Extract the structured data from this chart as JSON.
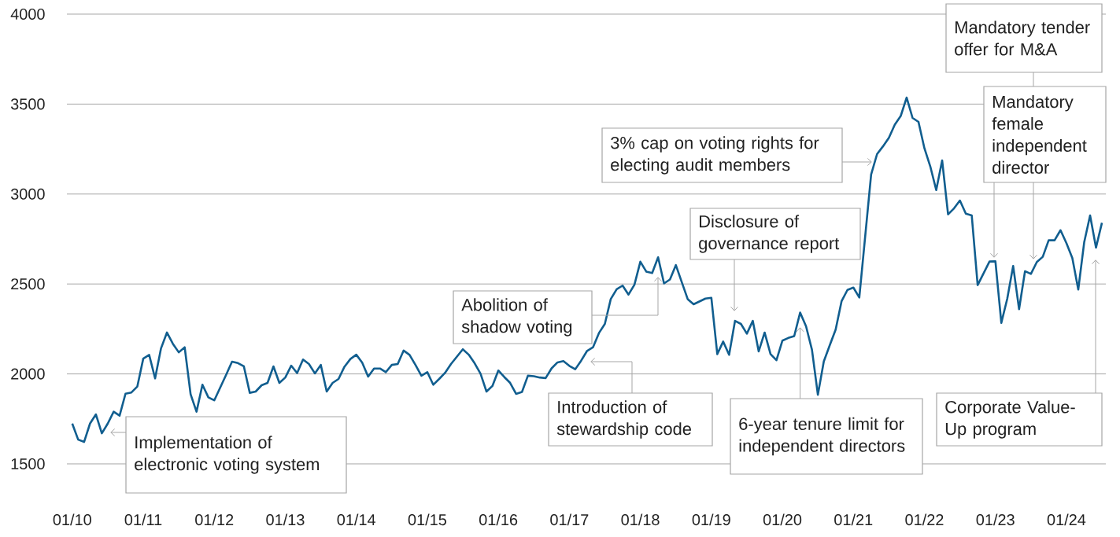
{
  "chart_data": {
    "type": "line",
    "x": [
      "2010-01",
      "2010-02",
      "2010-03",
      "2010-04",
      "2010-05",
      "2010-06",
      "2010-07",
      "2010-08",
      "2010-09",
      "2010-10",
      "2010-11",
      "2010-12",
      "2011-01",
      "2011-02",
      "2011-03",
      "2011-04",
      "2011-05",
      "2011-06",
      "2011-07",
      "2011-08",
      "2011-09",
      "2011-10",
      "2011-11",
      "2011-12",
      "2012-01",
      "2012-03",
      "2012-04",
      "2012-05",
      "2012-06",
      "2012-07",
      "2012-08",
      "2012-09",
      "2012-10",
      "2012-11",
      "2012-12",
      "2013-01",
      "2013-02",
      "2013-03",
      "2013-04",
      "2013-05",
      "2013-06",
      "2013-07",
      "2013-08",
      "2013-09",
      "2013-10",
      "2013-11",
      "2013-12",
      "2014-01",
      "2014-02",
      "2014-03",
      "2014-04",
      "2014-05",
      "2014-06",
      "2014-07",
      "2014-08",
      "2014-09",
      "2014-10",
      "2014-11",
      "2014-12",
      "2015-01",
      "2015-02",
      "2015-03",
      "2015-04",
      "2015-05",
      "2015-07",
      "2015-08",
      "2015-09",
      "2015-10",
      "2015-11",
      "2015-12",
      "2016-01",
      "2016-02",
      "2016-03",
      "2016-04",
      "2016-05",
      "2016-06",
      "2016-07",
      "2016-08",
      "2016-09",
      "2016-10",
      "2016-11",
      "2016-12",
      "2017-01",
      "2017-02",
      "2017-03",
      "2017-04",
      "2017-05",
      "2017-06",
      "2017-07",
      "2017-08",
      "2017-09",
      "2017-10",
      "2017-11",
      "2017-12",
      "2018-01",
      "2018-02",
      "2018-03",
      "2018-04",
      "2018-05",
      "2018-06",
      "2018-07",
      "2018-08",
      "2018-09",
      "2018-10",
      "2018-12",
      "2019-01",
      "2019-02",
      "2019-03",
      "2019-04",
      "2019-05",
      "2019-06",
      "2019-07",
      "2019-08",
      "2019-09",
      "2019-10",
      "2019-11",
      "2019-12",
      "2020-01",
      "2020-02",
      "2020-03",
      "2020-04",
      "2020-05",
      "2020-06",
      "2020-07",
      "2020-08",
      "2020-09",
      "2020-10",
      "2020-11",
      "2020-12",
      "2021-01",
      "2021-02",
      "2021-03",
      "2021-04",
      "2021-05",
      "2021-06",
      "2021-07",
      "2021-08",
      "2021-09",
      "2021-10",
      "2021-11",
      "2021-12",
      "2022-01",
      "2022-02",
      "2022-03",
      "2022-04",
      "2022-05",
      "2022-06",
      "2022-07",
      "2022-08",
      "2022-09",
      "2022-10",
      "2022-12",
      "2023-01",
      "2023-02",
      "2023-03",
      "2023-04",
      "2023-05",
      "2023-06",
      "2023-07",
      "2023-08",
      "2023-09",
      "2023-10",
      "2023-11",
      "2023-12",
      "2024-01",
      "2024-02",
      "2024-03",
      "2024-04",
      "2024-05",
      "2024-06",
      "2024-07"
    ],
    "series": [
      {
        "color": "#115e8f",
        "values": [
          1724,
          1635,
          1622,
          1724,
          1775,
          1670,
          1724,
          1790,
          1768,
          1890,
          1897,
          1930,
          2085,
          2106,
          1975,
          2142,
          2230,
          2168,
          2120,
          2148,
          1887,
          1790,
          1940,
          1870,
          1853,
          1995,
          2068,
          2060,
          2042,
          1895,
          1902,
          1937,
          1950,
          2042,
          1950,
          1980,
          2046,
          2005,
          2080,
          2055,
          2003,
          2050,
          1902,
          1950,
          1972,
          2040,
          2083,
          2107,
          2063,
          1985,
          2030,
          2030,
          2010,
          2050,
          2055,
          2130,
          2106,
          2050,
          1990,
          2010,
          1940,
          1972,
          2006,
          2055,
          2137,
          2107,
          2059,
          2001,
          1902,
          1933,
          2019,
          1983,
          1950,
          1889,
          1900,
          1990,
          1987,
          1980,
          1977,
          2031,
          2064,
          2071,
          2045,
          2026,
          2074,
          2128,
          2148,
          2227,
          2278,
          2416,
          2471,
          2491,
          2441,
          2496,
          2624,
          2569,
          2561,
          2648,
          2503,
          2525,
          2605,
          2510,
          2416,
          2387,
          2419,
          2423,
          2110,
          2180,
          2106,
          2295,
          2278,
          2224,
          2295,
          2125,
          2230,
          2110,
          2076,
          2185,
          2200,
          2210,
          2341,
          2265,
          2134,
          1884,
          2069,
          2159,
          2246,
          2404,
          2467,
          2480,
          2425,
          2767,
          3109,
          3222,
          3265,
          3313,
          3386,
          3434,
          3536,
          3423,
          3401,
          3255,
          3153,
          3022,
          3187,
          2887,
          2920,
          2964,
          2891,
          2881,
          2494,
          2625,
          2626,
          2284,
          2418,
          2600,
          2360,
          2571,
          2556,
          2622,
          2651,
          2743,
          2743,
          2799,
          2727,
          2644,
          2469,
          2731,
          2881,
          2702,
          2840
        ]
      }
    ],
    "xlim": [
      "2009-12-04",
      "2024-07-21"
    ],
    "ylim": [
      1500,
      4000
    ],
    "xticks": [
      {
        "value": "2010-01",
        "label": "01/10"
      },
      {
        "value": "2011-01",
        "label": "01/11"
      },
      {
        "value": "2012-01",
        "label": "01/12"
      },
      {
        "value": "2013-01",
        "label": "01/13"
      },
      {
        "value": "2014-01",
        "label": "01/14"
      },
      {
        "value": "2015-01",
        "label": "01/15"
      },
      {
        "value": "2016-01",
        "label": "01/16"
      },
      {
        "value": "2017-01",
        "label": "01/17"
      },
      {
        "value": "2018-01",
        "label": "01/18"
      },
      {
        "value": "2019-01",
        "label": "01/19"
      },
      {
        "value": "2020-01",
        "label": "01/20"
      },
      {
        "value": "2021-01",
        "label": "01/21"
      },
      {
        "value": "2022-01",
        "label": "01/22"
      },
      {
        "value": "2023-01",
        "label": "01/23"
      },
      {
        "value": "2024-01",
        "label": "01/24"
      }
    ],
    "yticks": [
      1500,
      2000,
      2500,
      3000,
      3500,
      4000
    ],
    "grid": "y",
    "marker": "none",
    "line_style": "solid",
    "annotations": [
      "Implementation of electronic voting system",
      "Introduction of stewardship code",
      "Abolition of shadow voting",
      "Disclosure of governance report",
      {
        "text": "6-year tenure limit for independent directors",
        "x": "2020-04",
        "y": 2260
      },
      "3% cap on voting rights for electing audit members",
      "Mandatory tender offer for M&A",
      "Mandatory female independent director",
      "Corporate Value-Up program"
    ]
  }
}
